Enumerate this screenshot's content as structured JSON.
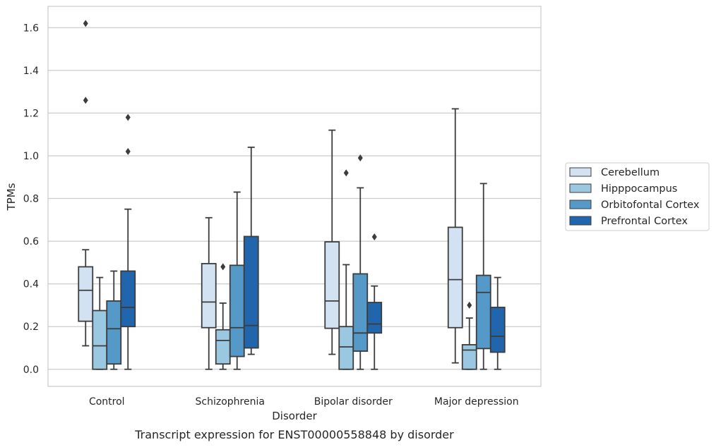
{
  "chart_data": {
    "type": "box",
    "caption": "Transcript expression for ENST00000558848 by disorder",
    "xlabel": "Disorder",
    "ylabel": "TPMs",
    "ylim": [
      -0.08,
      1.7
    ],
    "yticks": [
      "0.0",
      "0.2",
      "0.4",
      "0.6",
      "0.8",
      "1.0",
      "1.2",
      "1.4",
      "1.6"
    ],
    "grid": "horizontal",
    "legend_position": "right",
    "categories": [
      "Control",
      "Schizophrenia",
      "Bipolar disorder",
      "Major depression"
    ],
    "series": [
      {
        "name": "Cerebellum",
        "color": "#d3e2f2",
        "boxes": [
          {
            "whisker_low": 0.11,
            "q1": 0.225,
            "median": 0.37,
            "q3": 0.48,
            "whisker_high": 0.56,
            "outliers": [
              1.62,
              1.26
            ]
          },
          {
            "whisker_low": 0.0,
            "q1": 0.195,
            "median": 0.315,
            "q3": 0.495,
            "whisker_high": 0.71,
            "outliers": []
          },
          {
            "whisker_low": 0.07,
            "q1": 0.192,
            "median": 0.32,
            "q3": 0.597,
            "whisker_high": 1.12,
            "outliers": []
          },
          {
            "whisker_low": 0.03,
            "q1": 0.195,
            "median": 0.42,
            "q3": 0.665,
            "whisker_high": 1.22,
            "outliers": []
          }
        ]
      },
      {
        "name": "Hipppocampus",
        "color": "#9ac8e0",
        "boxes": [
          {
            "whisker_low": 0.0,
            "q1": 0.0,
            "median": 0.11,
            "q3": 0.275,
            "whisker_high": 0.43,
            "outliers": []
          },
          {
            "whisker_low": 0.0,
            "q1": 0.025,
            "median": 0.135,
            "q3": 0.185,
            "whisker_high": 0.31,
            "outliers": [
              0.48
            ]
          },
          {
            "whisker_low": 0.0,
            "q1": 0.0,
            "median": 0.105,
            "q3": 0.2,
            "whisker_high": 0.49,
            "outliers": [
              0.92
            ]
          },
          {
            "whisker_low": 0.0,
            "q1": 0.0,
            "median": 0.09,
            "q3": 0.115,
            "whisker_high": 0.24,
            "outliers": [
              0.3
            ]
          }
        ]
      },
      {
        "name": "Orbitofontal Cortex",
        "color": "#5599c9",
        "boxes": [
          {
            "whisker_low": 0.0,
            "q1": 0.025,
            "median": 0.19,
            "q3": 0.32,
            "whisker_high": 0.46,
            "outliers": []
          },
          {
            "whisker_low": 0.0,
            "q1": 0.06,
            "median": 0.195,
            "q3": 0.487,
            "whisker_high": 0.83,
            "outliers": []
          },
          {
            "whisker_low": 0.0,
            "q1": 0.085,
            "median": 0.17,
            "q3": 0.447,
            "whisker_high": 0.85,
            "outliers": [
              0.99
            ]
          },
          {
            "whisker_low": 0.0,
            "q1": 0.097,
            "median": 0.36,
            "q3": 0.44,
            "whisker_high": 0.87,
            "outliers": []
          }
        ]
      },
      {
        "name": "Prefrontal Cortex",
        "color": "#2166ac",
        "boxes": [
          {
            "whisker_low": 0.0,
            "q1": 0.2,
            "median": 0.29,
            "q3": 0.46,
            "whisker_high": 0.75,
            "outliers": [
              1.18,
              1.02
            ]
          },
          {
            "whisker_low": 0.07,
            "q1": 0.1,
            "median": 0.205,
            "q3": 0.622,
            "whisker_high": 1.04,
            "outliers": []
          },
          {
            "whisker_low": 0.0,
            "q1": 0.17,
            "median": 0.212,
            "q3": 0.313,
            "whisker_high": 0.39,
            "outliers": [
              0.62
            ]
          },
          {
            "whisker_low": 0.0,
            "q1": 0.08,
            "median": 0.155,
            "q3": 0.29,
            "whisker_high": 0.43,
            "outliers": []
          }
        ]
      }
    ]
  }
}
